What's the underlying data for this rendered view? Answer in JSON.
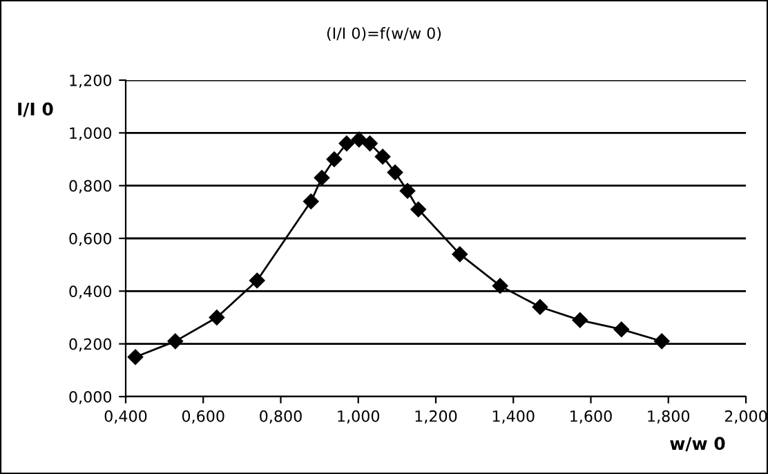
{
  "chart_data": {
    "type": "line",
    "title": "(I/I 0)=f(w/w 0)",
    "xlabel": "w/w 0",
    "ylabel": "I/I 0",
    "x": [
      0.425,
      0.528,
      0.635,
      0.739,
      0.878,
      0.906,
      0.938,
      0.97,
      1.002,
      1.03,
      1.063,
      1.095,
      1.127,
      1.155,
      1.262,
      1.366,
      1.469,
      1.572,
      1.679,
      1.783
    ],
    "series": [
      {
        "color": "#000000",
        "values": [
          0.15,
          0.21,
          0.3,
          0.44,
          0.74,
          0.83,
          0.9,
          0.96,
          0.975,
          0.96,
          0.91,
          0.85,
          0.78,
          0.71,
          0.54,
          0.42,
          0.34,
          0.29,
          0.255,
          0.21
        ]
      }
    ],
    "xlim": [
      0.4,
      2.0
    ],
    "ylim": [
      0,
      1.2
    ],
    "xticks": [
      {
        "value": 0.4,
        "label": "0,400"
      },
      {
        "value": 0.6,
        "label": "0,600"
      },
      {
        "value": 0.8,
        "label": "0,800"
      },
      {
        "value": 1.0,
        "label": "1,000"
      },
      {
        "value": 1.2,
        "label": "1,200"
      },
      {
        "value": 1.4,
        "label": "1,400"
      },
      {
        "value": 1.6,
        "label": "1,600"
      },
      {
        "value": 1.8,
        "label": "1,800"
      },
      {
        "value": 2.0,
        "label": "2,000"
      }
    ],
    "yticks": [
      {
        "value": 0,
        "label": "0,000"
      },
      {
        "value": 0.2,
        "label": "0,200"
      },
      {
        "value": 0.4,
        "label": "0,400"
      },
      {
        "value": 0.6,
        "label": "0,600"
      },
      {
        "value": 0.8,
        "label": "0,800"
      },
      {
        "value": 1.0,
        "label": "1,000"
      },
      {
        "value": 1.2,
        "label": "1,200"
      }
    ],
    "grid": "y",
    "marker": "diamond",
    "line_style": "solid"
  }
}
